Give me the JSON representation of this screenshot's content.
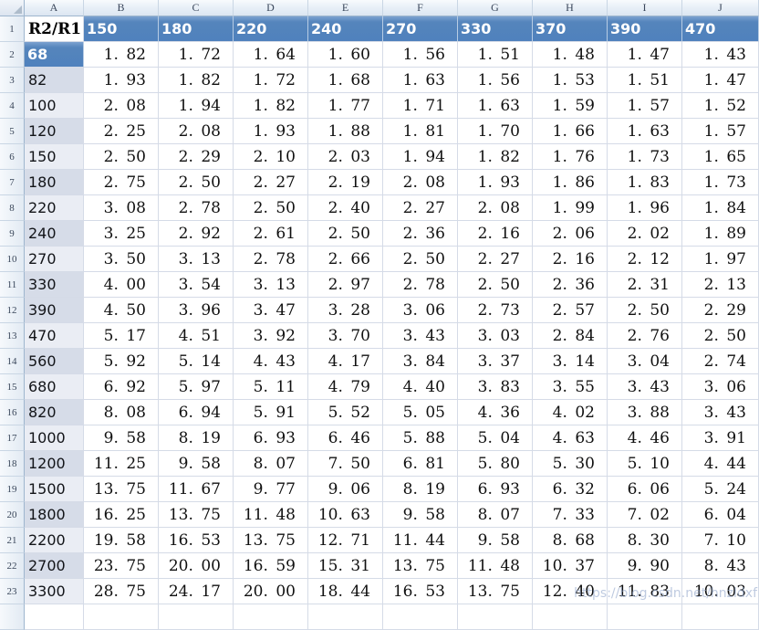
{
  "watermark": "https://blog.csdn.net/hnzldxf",
  "sheet": {
    "corner_cell": "R2/R1",
    "column_letters": [
      "A",
      "B",
      "C",
      "D",
      "E",
      "F",
      "G",
      "H",
      "I",
      "J"
    ],
    "row_numbers": [
      "1",
      "2",
      "3",
      "4",
      "5",
      "6",
      "7",
      "8",
      "9",
      "10",
      "11",
      "12",
      "13",
      "14",
      "15",
      "16",
      "17",
      "18",
      "19",
      "20",
      "21",
      "22",
      "23"
    ],
    "header_row": {
      "values": [
        "150",
        "180",
        "220",
        "240",
        "270",
        "330",
        "370",
        "390",
        "470"
      ]
    },
    "data_rows": [
      {
        "label": "68",
        "shade": "selected",
        "values": [
          "1.82",
          "1.72",
          "1.64",
          "1.60",
          "1.56",
          "1.51",
          "1.48",
          "1.47",
          "1.43"
        ]
      },
      {
        "label": "82",
        "shade": "dark",
        "values": [
          "1.93",
          "1.82",
          "1.72",
          "1.68",
          "1.63",
          "1.56",
          "1.53",
          "1.51",
          "1.47"
        ]
      },
      {
        "label": "100",
        "shade": "light",
        "values": [
          "2.08",
          "1.94",
          "1.82",
          "1.77",
          "1.71",
          "1.63",
          "1.59",
          "1.57",
          "1.52"
        ]
      },
      {
        "label": "120",
        "shade": "dark",
        "values": [
          "2.25",
          "2.08",
          "1.93",
          "1.88",
          "1.81",
          "1.70",
          "1.66",
          "1.63",
          "1.57"
        ]
      },
      {
        "label": "150",
        "shade": "light",
        "values": [
          "2.50",
          "2.29",
          "2.10",
          "2.03",
          "1.94",
          "1.82",
          "1.76",
          "1.73",
          "1.65"
        ]
      },
      {
        "label": "180",
        "shade": "dark",
        "values": [
          "2.75",
          "2.50",
          "2.27",
          "2.19",
          "2.08",
          "1.93",
          "1.86",
          "1.83",
          "1.73"
        ]
      },
      {
        "label": "220",
        "shade": "light",
        "values": [
          "3.08",
          "2.78",
          "2.50",
          "2.40",
          "2.27",
          "2.08",
          "1.99",
          "1.96",
          "1.84"
        ]
      },
      {
        "label": "240",
        "shade": "dark",
        "values": [
          "3.25",
          "2.92",
          "2.61",
          "2.50",
          "2.36",
          "2.16",
          "2.06",
          "2.02",
          "1.89"
        ]
      },
      {
        "label": "270",
        "shade": "light",
        "values": [
          "3.50",
          "3.13",
          "2.78",
          "2.66",
          "2.50",
          "2.27",
          "2.16",
          "2.12",
          "1.97"
        ]
      },
      {
        "label": "330",
        "shade": "dark",
        "values": [
          "4.00",
          "3.54",
          "3.13",
          "2.97",
          "2.78",
          "2.50",
          "2.36",
          "2.31",
          "2.13"
        ]
      },
      {
        "label": "390",
        "shade": "dark",
        "values": [
          "4.50",
          "3.96",
          "3.47",
          "3.28",
          "3.06",
          "2.73",
          "2.57",
          "2.50",
          "2.29"
        ]
      },
      {
        "label": "470",
        "shade": "light",
        "values": [
          "5.17",
          "4.51",
          "3.92",
          "3.70",
          "3.43",
          "3.03",
          "2.84",
          "2.76",
          "2.50"
        ]
      },
      {
        "label": "560",
        "shade": "dark",
        "values": [
          "5.92",
          "5.14",
          "4.43",
          "4.17",
          "3.84",
          "3.37",
          "3.14",
          "3.04",
          "2.74"
        ]
      },
      {
        "label": "680",
        "shade": "light",
        "values": [
          "6.92",
          "5.97",
          "5.11",
          "4.79",
          "4.40",
          "3.83",
          "3.55",
          "3.43",
          "3.06"
        ]
      },
      {
        "label": "820",
        "shade": "dark",
        "values": [
          "8.08",
          "6.94",
          "5.91",
          "5.52",
          "5.05",
          "4.36",
          "4.02",
          "3.88",
          "3.43"
        ]
      },
      {
        "label": "1000",
        "shade": "light",
        "values": [
          "9.58",
          "8.19",
          "6.93",
          "6.46",
          "5.88",
          "5.04",
          "4.63",
          "4.46",
          "3.91"
        ]
      },
      {
        "label": "1200",
        "shade": "dark",
        "values": [
          "11.25",
          "9.58",
          "8.07",
          "7.50",
          "6.81",
          "5.80",
          "5.30",
          "5.10",
          "4.44"
        ]
      },
      {
        "label": "1500",
        "shade": "light",
        "values": [
          "13.75",
          "11.67",
          "9.77",
          "9.06",
          "8.19",
          "6.93",
          "6.32",
          "6.06",
          "5.24"
        ]
      },
      {
        "label": "1800",
        "shade": "dark",
        "values": [
          "16.25",
          "13.75",
          "11.48",
          "10.63",
          "9.58",
          "8.07",
          "7.33",
          "7.02",
          "6.04"
        ]
      },
      {
        "label": "2200",
        "shade": "light",
        "values": [
          "19.58",
          "16.53",
          "13.75",
          "12.71",
          "11.44",
          "9.58",
          "8.68",
          "8.30",
          "7.10"
        ]
      },
      {
        "label": "2700",
        "shade": "dark",
        "values": [
          "23.75",
          "20.00",
          "16.59",
          "15.31",
          "13.75",
          "11.48",
          "10.37",
          "9.90",
          "8.43"
        ]
      },
      {
        "label": "3300",
        "shade": "light",
        "values": [
          "28.75",
          "24.17",
          "20.00",
          "18.44",
          "16.53",
          "13.75",
          "12.40",
          "11.83",
          "10.03"
        ]
      }
    ],
    "colors": {
      "header_blue": "#4F81BD",
      "shade_dark": "#D6DCE8",
      "shade_light": "#EAEDF4",
      "gridline": "#D5DBE7"
    }
  }
}
